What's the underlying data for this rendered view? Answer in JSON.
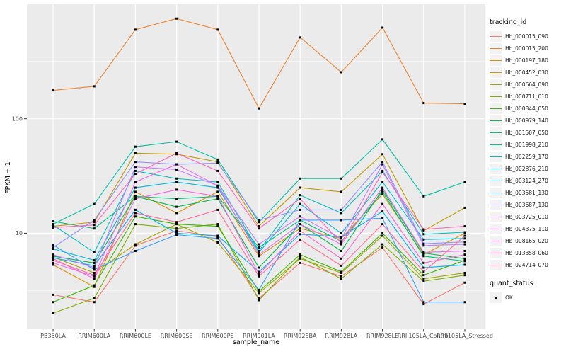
{
  "chart_data": {
    "type": "line",
    "title": "",
    "xlabel": "sample_name",
    "ylabel": "FPKM + 1",
    "y_scale": "log10",
    "ylim": [
      1.45,
      1000
    ],
    "yticks": [
      10,
      100
    ],
    "y_minor_gridlines": [
      3.162,
      31.62,
      316.2
    ],
    "panel_background": "#EBEBEB",
    "gridline_color": "#FFFFFF",
    "tick_color": "#333333",
    "tick_label_color": "#4D4D4D",
    "marker": {
      "shape": "square",
      "color": "#000000",
      "size": 3
    },
    "categories": [
      "PB350LA",
      "RRIM600LA",
      "RRIM600LE",
      "RRIM600SE",
      "RRIM600PE",
      "RRIM901LA",
      "RRIM928BA",
      "RRIM928LA",
      "RRIM928LE",
      "RRII105LA_Control",
      "RRII105LA_Stressed"
    ],
    "series": [
      {
        "name": "Hb_000015_090",
        "color": "#F8766D",
        "values": [
          2.9,
          2.5,
          7.8,
          10.5,
          9.3,
          2.7,
          5.5,
          4.2,
          7.5,
          2.4,
          3.7
        ]
      },
      {
        "name": "Hb_000015_200",
        "color": "#EA8331",
        "values": [
          177,
          192,
          600,
          750,
          600,
          123,
          513,
          255,
          625,
          137,
          135
        ]
      },
      {
        "name": "Hb_000197_180",
        "color": "#D89000",
        "values": [
          5.3,
          3.4,
          23,
          15,
          23,
          6.3,
          11,
          9,
          22,
          6.5,
          10
        ]
      },
      {
        "name": "Hb_000452_030",
        "color": "#C09B00",
        "values": [
          11.5,
          12.5,
          50,
          49,
          42,
          11.5,
          25,
          23,
          49,
          10.5,
          16.7
        ]
      },
      {
        "name": "Hb_000664_090",
        "color": "#A3A500",
        "values": [
          6.2,
          4.5,
          8.0,
          12,
          8.3,
          3.0,
          6.0,
          4.5,
          9.5,
          4.0,
          4.5
        ]
      },
      {
        "name": "Hb_000711_010",
        "color": "#7CAE00",
        "values": [
          2.0,
          2.7,
          12,
          11,
          12,
          2.6,
          6.2,
          4.0,
          8.0,
          3.8,
          4.3
        ]
      },
      {
        "name": "Hb_000844_050",
        "color": "#39B600",
        "values": [
          2.5,
          3.5,
          14,
          12,
          11.5,
          3.1,
          6.5,
          4.6,
          10,
          4.3,
          5.8
        ]
      },
      {
        "name": "Hb_000979_140",
        "color": "#00BB4E",
        "values": [
          6.3,
          5.5,
          21,
          17,
          20,
          5.0,
          12,
          7.0,
          24,
          6.7,
          6.0
        ]
      },
      {
        "name": "Hb_001507_050",
        "color": "#00BF7D",
        "values": [
          12.7,
          11,
          21,
          20,
          21,
          7.5,
          13,
          8.5,
          23,
          6.3,
          5.7
        ]
      },
      {
        "name": "Hb_001998_210",
        "color": "#00C1A3",
        "values": [
          12.0,
          18,
          57,
          63,
          44,
          12.5,
          30,
          30,
          66,
          21,
          28
        ]
      },
      {
        "name": "Hb_002259_170",
        "color": "#00BFC4",
        "values": [
          11.8,
          6.8,
          35,
          30,
          28,
          7.0,
          21.5,
          15,
          35,
          9.8,
          10.2
        ]
      },
      {
        "name": "Hb_002876_210",
        "color": "#00BAE0",
        "values": [
          7.3,
          5.8,
          25,
          28,
          25,
          6.8,
          18,
          10,
          28,
          8.8,
          9.0
        ]
      },
      {
        "name": "Hb_003124_270",
        "color": "#00B0F6",
        "values": [
          6.1,
          5.2,
          16,
          10,
          9.5,
          4.6,
          9.8,
          9.3,
          15.5,
          5.0,
          5.3
        ]
      },
      {
        "name": "Hb_003581_130",
        "color": "#35A2FF",
        "values": [
          7.9,
          4.8,
          7.0,
          9.7,
          9.0,
          3.2,
          13,
          13,
          13.5,
          2.5,
          2.5
        ]
      },
      {
        "name": "Hb_003687_130",
        "color": "#9590FF",
        "values": [
          7.5,
          13,
          42,
          40,
          41,
          13,
          16,
          16,
          42,
          8.1,
          8.4
        ]
      },
      {
        "name": "Hb_003725_010",
        "color": "#C77CFF",
        "values": [
          6.5,
          5.0,
          38,
          36,
          26,
          8.0,
          14,
          9.0,
          40,
          7.8,
          8.0
        ]
      },
      {
        "name": "Hb_004375_110",
        "color": "#E76BF3",
        "values": [
          5.5,
          4.2,
          28,
          40,
          26,
          6.5,
          12,
          8.0,
          25,
          6.8,
          7.0
        ]
      },
      {
        "name": "Hb_008165_020",
        "color": "#FA62DB",
        "values": [
          6.0,
          4.0,
          20,
          24,
          21,
          4.4,
          10.5,
          6.0,
          18,
          5.5,
          6.5
        ]
      },
      {
        "name": "Hb_013358_060",
        "color": "#FF62BC",
        "values": [
          11.2,
          11.8,
          33,
          50,
          35,
          11,
          20,
          8.2,
          34,
          10.8,
          11.5
        ]
      },
      {
        "name": "Hb_024714_070",
        "color": "#FF6A98",
        "values": [
          5.8,
          4.3,
          15,
          12.5,
          16,
          4.2,
          8.8,
          5.2,
          12,
          4.6,
          9.5
        ]
      }
    ],
    "legend": {
      "position": "right",
      "key_background": "#F2F2F2",
      "color_legend_title": "tracking_id",
      "shape_legend_title": "quant_status",
      "shape_legend_entries": [
        "OK"
      ]
    }
  }
}
